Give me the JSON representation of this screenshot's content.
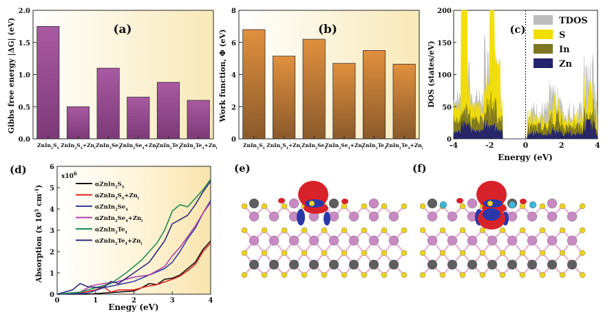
{
  "chart_data": [
    {
      "panel": "(a)",
      "type": "bar",
      "ylabel": "Gibbs free energy |ΔG| (eV)",
      "ylim": [
        0,
        2.0
      ],
      "yticks": [
        "0.0",
        "0.5",
        "1.0",
        "1.5",
        "2.0"
      ],
      "categories": [
        "ZnIn2S4",
        "ZnIn2S4+Zni",
        "ZnIn2Se4",
        "ZnIn2Se4+Zni",
        "ZnIn2Te4",
        "ZnIn2Te4+Zni"
      ],
      "values": [
        1.75,
        0.5,
        1.1,
        0.65,
        0.88,
        0.6
      ],
      "bar_color": "#9e4f98"
    },
    {
      "panel": "(b)",
      "type": "bar",
      "ylabel": "Work function, Φ (eV)",
      "ylim": [
        0,
        8
      ],
      "yticks": [
        "0",
        "2",
        "4",
        "6",
        "8"
      ],
      "categories": [
        "ZnIn2S4",
        "ZnIn2S4+Zni",
        "ZnIn2Se4",
        "ZnIn2Se4+Zni",
        "ZnIn2Te4",
        "ZnIn2Te4+Zni"
      ],
      "values": [
        6.8,
        5.15,
        6.2,
        4.7,
        5.5,
        4.65
      ],
      "bar_color": "#d8883f"
    },
    {
      "panel": "(c)",
      "type": "area",
      "xlabel": "Energy (eV)",
      "ylabel": "DOS (states/eV)",
      "xlim": [
        -4,
        4
      ],
      "ylim": [
        0,
        200
      ],
      "xticks": [
        "-4",
        "-2",
        "0",
        "2",
        "4"
      ],
      "yticks": [
        "0",
        "50",
        "100",
        "150",
        "200"
      ],
      "legend": "top-right",
      "series": [
        {
          "name": "TDOS",
          "color": "#bcbcbc"
        },
        {
          "name": "S",
          "color": "#f2dd00"
        },
        {
          "name": "In",
          "color": "#7c7620"
        },
        {
          "name": "Zn",
          "color": "#22226e"
        }
      ]
    },
    {
      "panel": "(d)",
      "type": "line",
      "xlabel": "Enegy (eV)",
      "ylabel": "Absorption (x 10^5 cm^-1)",
      "multiplier": "x10^6",
      "xlim": [
        0,
        4
      ],
      "ylim": [
        0,
        6
      ],
      "xticks": [
        "0",
        "1",
        "2",
        "3",
        "4"
      ],
      "yticks": [
        "0",
        "1",
        "2",
        "3",
        "4",
        "5",
        "6"
      ],
      "legend": "top-left",
      "series": [
        {
          "name": "αZnIn2S4",
          "color": "#111111",
          "x": [
            0,
            0.8,
            1.2,
            1.6,
            2.0,
            2.2,
            2.4,
            2.6,
            2.8,
            3.0,
            3.2,
            3.4,
            3.6,
            3.8,
            4.0
          ],
          "y": [
            0,
            0,
            0.05,
            0.1,
            0.15,
            0.3,
            0.5,
            0.45,
            0.7,
            0.75,
            0.9,
            1.2,
            1.5,
            2.1,
            2.5
          ]
        },
        {
          "name": "αZnIn2S4+Zni",
          "color": "#e02020",
          "x": [
            0,
            0.6,
            1.0,
            1.2,
            1.4,
            1.6,
            2.0,
            2.3,
            2.6,
            3.0,
            3.2,
            3.4,
            3.6,
            3.8,
            4.0
          ],
          "y": [
            0,
            0.05,
            0.2,
            0.35,
            0.1,
            0.2,
            0.2,
            0.35,
            0.45,
            0.7,
            0.85,
            1.1,
            1.4,
            2.0,
            2.4
          ]
        },
        {
          "name": "αZnIn2Se4",
          "color": "#3040a0",
          "x": [
            0,
            0.8,
            1.2,
            1.6,
            2.0,
            2.4,
            2.8,
            3.0,
            3.2,
            3.4,
            3.6,
            3.8,
            4.0
          ],
          "y": [
            0,
            0.05,
            0.3,
            0.45,
            0.6,
            0.9,
            1.2,
            1.5,
            2.0,
            2.6,
            3.1,
            3.8,
            4.4
          ]
        },
        {
          "name": "αZnIn2Se4+Zni",
          "color": "#b040b0",
          "x": [
            0,
            0.6,
            0.9,
            1.2,
            1.5,
            2.0,
            2.4,
            2.8,
            3.0,
            3.2,
            3.4,
            3.6,
            3.8,
            4.0
          ],
          "y": [
            0,
            0.1,
            0.4,
            0.5,
            0.55,
            0.8,
            0.9,
            1.3,
            1.8,
            2.2,
            2.7,
            3.2,
            3.8,
            4.3
          ]
        },
        {
          "name": "αZnIn2Te4",
          "color": "#1a8a50",
          "x": [
            0,
            0.6,
            1.0,
            1.4,
            1.8,
            2.2,
            2.6,
            2.8,
            3.0,
            3.2,
            3.4,
            3.6,
            3.8,
            4.0
          ],
          "y": [
            0,
            0.1,
            0.3,
            0.5,
            1.0,
            1.6,
            2.4,
            3.0,
            3.9,
            4.2,
            4.1,
            4.5,
            4.9,
            5.4
          ]
        },
        {
          "name": "αZnIn2Te4+Zni",
          "color": "#2b2b7a",
          "x": [
            0,
            0.4,
            0.6,
            0.8,
            1.2,
            1.4,
            1.6,
            2.0,
            2.4,
            2.8,
            3.0,
            3.2,
            3.4,
            3.6,
            3.8,
            4.0
          ],
          "y": [
            0,
            0.2,
            0.5,
            0.35,
            0.3,
            0.6,
            0.5,
            1.0,
            1.5,
            2.5,
            3.3,
            3.5,
            3.7,
            4.2,
            4.8,
            5.3
          ]
        }
      ]
    },
    {
      "panel": "(e)",
      "type": "image"
    },
    {
      "panel": "(f)",
      "type": "image"
    }
  ]
}
